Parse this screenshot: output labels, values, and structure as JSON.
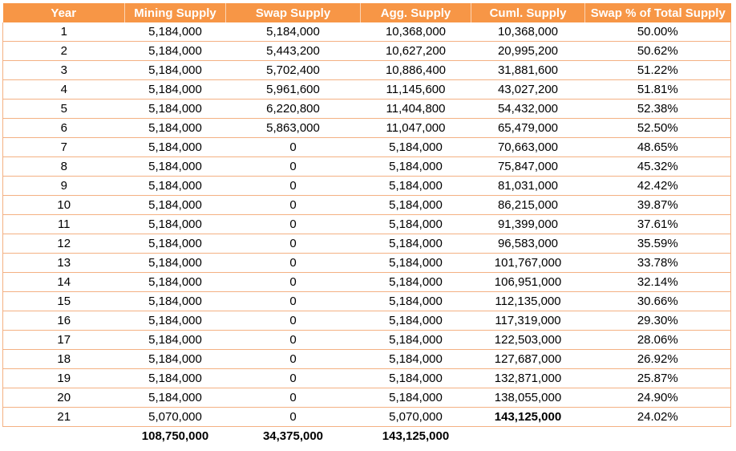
{
  "table": {
    "columns": [
      "Year",
      "Mining Supply",
      "Swap Supply",
      "Agg. Supply",
      "Cuml. Supply",
      "Swap % of Total Supply"
    ],
    "rows": [
      [
        "1",
        "5,184,000",
        "5,184,000",
        "10,368,000",
        "10,368,000",
        "50.00%"
      ],
      [
        "2",
        "5,184,000",
        "5,443,200",
        "10,627,200",
        "20,995,200",
        "50.62%"
      ],
      [
        "3",
        "5,184,000",
        "5,702,400",
        "10,886,400",
        "31,881,600",
        "51.22%"
      ],
      [
        "4",
        "5,184,000",
        "5,961,600",
        "11,145,600",
        "43,027,200",
        "51.81%"
      ],
      [
        "5",
        "5,184,000",
        "6,220,800",
        "11,404,800",
        "54,432,000",
        "52.38%"
      ],
      [
        "6",
        "5,184,000",
        "5,863,000",
        "11,047,000",
        "65,479,000",
        "52.50%"
      ],
      [
        "7",
        "5,184,000",
        "0",
        "5,184,000",
        "70,663,000",
        "48.65%"
      ],
      [
        "8",
        "5,184,000",
        "0",
        "5,184,000",
        "75,847,000",
        "45.32%"
      ],
      [
        "9",
        "5,184,000",
        "0",
        "5,184,000",
        "81,031,000",
        "42.42%"
      ],
      [
        "10",
        "5,184,000",
        "0",
        "5,184,000",
        "86,215,000",
        "39.87%"
      ],
      [
        "11",
        "5,184,000",
        "0",
        "5,184,000",
        "91,399,000",
        "37.61%"
      ],
      [
        "12",
        "5,184,000",
        "0",
        "5,184,000",
        "96,583,000",
        "35.59%"
      ],
      [
        "13",
        "5,184,000",
        "0",
        "5,184,000",
        "101,767,000",
        "33.78%"
      ],
      [
        "14",
        "5,184,000",
        "0",
        "5,184,000",
        "106,951,000",
        "32.14%"
      ],
      [
        "15",
        "5,184,000",
        "0",
        "5,184,000",
        "112,135,000",
        "30.66%"
      ],
      [
        "16",
        "5,184,000",
        "0",
        "5,184,000",
        "117,319,000",
        "29.30%"
      ],
      [
        "17",
        "5,184,000",
        "0",
        "5,184,000",
        "122,503,000",
        "28.06%"
      ],
      [
        "18",
        "5,184,000",
        "0",
        "5,184,000",
        "127,687,000",
        "26.92%"
      ],
      [
        "19",
        "5,184,000",
        "0",
        "5,184,000",
        "132,871,000",
        "25.87%"
      ],
      [
        "20",
        "5,184,000",
        "0",
        "5,184,000",
        "138,055,000",
        "24.90%"
      ],
      [
        "21",
        "5,070,000",
        "0",
        "5,070,000",
        "143,125,000",
        "24.02%"
      ]
    ],
    "bold_cells": [
      [
        20,
        4
      ]
    ],
    "totals": [
      "",
      "108,750,000",
      "34,375,000",
      "143,125,000",
      "",
      ""
    ]
  },
  "colors": {
    "header_bg": "#f79646",
    "header_text": "#ffffff",
    "row_border": "#f4b183"
  }
}
